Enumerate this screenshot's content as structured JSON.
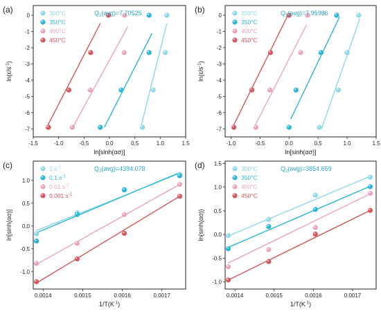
{
  "colors": {
    "s300": "#8ed8e8",
    "s350": "#2cb6d6",
    "s400": "#eaa4c2",
    "s450": "#d4575e"
  },
  "chart_data": [
    {
      "type": "scatter",
      "panel_label": "(a)",
      "annotation": "Q",
      "annotation_sub": "1",
      "annotation_rest": "(avg)=7.70525",
      "xlabel": "ln[sinh(ασ)]",
      "ylabel_html": "ln(ε̇/s⁻¹)",
      "ylabel_parts": [
        "ln(",
        "ε̇",
        "/s",
        "-1",
        ")"
      ],
      "xlim": [
        -1.5,
        1.5
      ],
      "ylim": [
        -7.5,
        0.6
      ],
      "xticks": [
        -1.5,
        -1.0,
        -0.5,
        0.0,
        0.5,
        1.0,
        1.5
      ],
      "xtick_labels": [
        "-1.5",
        "-1.0",
        "-0.5",
        "0.0",
        "0.5",
        "1.0",
        "1.5"
      ],
      "yticks": [
        -7,
        -6,
        -5,
        -4,
        -3,
        -2,
        -1,
        0
      ],
      "ytick_labels": [
        "-7",
        "-6",
        "-5",
        "-4",
        "-3",
        "-2",
        "-1",
        "0"
      ],
      "legend": [
        "300°C",
        "350°C",
        "400°C",
        "450°C"
      ],
      "y_values": [
        -6.91,
        -4.61,
        -2.3,
        0.0
      ],
      "series": [
        {
          "name": "300°C",
          "color_key": "s300",
          "x": [
            0.65,
            0.86,
            1.1,
            1.13
          ],
          "fit": [
            [
              0.61,
              -7.0
            ],
            [
              1.13,
              -0.5
            ]
          ]
        },
        {
          "name": "350°C",
          "color_key": "s350",
          "x": [
            -0.18,
            0.23,
            0.78,
            0.78
          ],
          "fit": [
            [
              -0.1,
              -6.9
            ],
            [
              0.84,
              -1.1
            ]
          ]
        },
        {
          "name": "400°C",
          "color_key": "s400",
          "x": [
            -0.73,
            -0.38,
            0.29,
            0.3
          ],
          "fit": [
            [
              -0.72,
              -6.9
            ],
            [
              0.36,
              -0.7
            ]
          ]
        },
        {
          "name": "450°C",
          "color_key": "s450",
          "x": [
            -1.2,
            -0.8,
            -0.37,
            -0.02
          ],
          "fit": [
            [
              -1.25,
              -7.0
            ],
            [
              -0.18,
              -0.5
            ]
          ]
        }
      ]
    },
    {
      "type": "scatter",
      "panel_label": "(b)",
      "annotation": "Q",
      "annotation_sub": "1",
      "annotation_rest": "(avg)=7.95986",
      "xlabel": "ln[sinh(ασ)]",
      "ylabel_parts": [
        "ln(",
        "ε̇",
        "/s",
        "-1",
        ")"
      ],
      "xlim": [
        -1.1,
        1.5
      ],
      "ylim": [
        -7.5,
        0.6
      ],
      "xticks": [
        -1.0,
        -0.5,
        0.0,
        0.5,
        1.0,
        1.5
      ],
      "xtick_labels": [
        "-1.0",
        "-0.5",
        "0.0",
        "0.5",
        "1.0",
        "1.5"
      ],
      "yticks": [
        -7,
        -6,
        -5,
        -4,
        -3,
        -2,
        -1,
        0
      ],
      "ytick_labels": [
        "-7",
        "-6",
        "-5",
        "-4",
        "-3",
        "-2",
        "-1",
        "0"
      ],
      "legend": [
        "300°C",
        "350°C",
        "400°C",
        "450°C"
      ],
      "y_values": [
        -6.91,
        -4.61,
        -2.3,
        0.0
      ],
      "series": [
        {
          "name": "300°C",
          "color_key": "s300",
          "x": [
            0.52,
            0.85,
            1.0,
            1.2
          ],
          "fit": [
            [
              0.56,
              -7.0
            ],
            [
              1.22,
              -0.2
            ]
          ]
        },
        {
          "name": "350°C",
          "color_key": "s350",
          "x": [
            0.0,
            0.12,
            0.55,
            0.82
          ],
          "fit": [
            [
              0.03,
              -6.4
            ],
            [
              0.87,
              -0.1
            ]
          ]
        },
        {
          "name": "400°C",
          "color_key": "s400",
          "x": [
            -0.57,
            -0.33,
            0.2,
            0.32
          ],
          "fit": [
            [
              -0.6,
              -6.9
            ],
            [
              0.3,
              -0.6
            ]
          ]
        },
        {
          "name": "450°C",
          "color_key": "s450",
          "x": [
            -0.95,
            -0.64,
            -0.32,
            0.0
          ],
          "fit": [
            [
              -0.97,
              -6.9
            ],
            [
              -0.02,
              0.0
            ]
          ]
        }
      ]
    },
    {
      "type": "scatter",
      "panel_label": "(c)",
      "annotation": "Q",
      "annotation_sub": "2",
      "annotation_rest": "(avg)=4394.078",
      "xlabel_parts": [
        "1/T(K",
        "-1",
        ")"
      ],
      "ylabel": "ln[sinh(ασ)]",
      "xlim": [
        0.001375,
        0.00176
      ],
      "ylim": [
        -1.38,
        1.42
      ],
      "xticks": [
        0.0014,
        0.0015,
        0.0016,
        0.0017
      ],
      "xtick_labels": [
        "0.0014",
        "0.0015",
        "0.0016",
        "0.0017"
      ],
      "yticks": [
        -1.0,
        -0.5,
        0.0,
        0.5,
        1.0
      ],
      "ytick_labels": [
        "-1.0",
        "-0.5",
        "0.0",
        "0.5",
        "1.0"
      ],
      "legend": [
        "1 s⁻¹",
        "0.1 s⁻¹",
        "0.01 s⁻¹",
        "0.001 s⁻¹"
      ],
      "legend_parts": [
        [
          "1 s",
          "-1"
        ],
        [
          "0.1 s",
          "-1"
        ],
        [
          "0.01 s",
          "-1"
        ],
        [
          "0.001 s",
          "-1"
        ]
      ],
      "x_values": [
        0.001383,
        0.001486,
        0.001605,
        0.001745
      ],
      "series": [
        {
          "name": "1 s-1",
          "color_key": "s300",
          "y": [
            -0.17,
            0.29,
            0.8,
            1.13
          ],
          "fit": [
            [
              0.001383,
              -0.1
            ],
            [
              0.001745,
              1.15
            ]
          ]
        },
        {
          "name": "0.1 s-1",
          "color_key": "s350",
          "y": [
            -0.33,
            0.25,
            0.79,
            1.1
          ],
          "fit": [
            [
              0.001383,
              -0.15
            ],
            [
              0.001745,
              1.17
            ]
          ]
        },
        {
          "name": "0.01 s-1",
          "color_key": "s400",
          "y": [
            -0.82,
            -0.38,
            0.25,
            0.91
          ],
          "fit": [
            [
              0.001383,
              -0.84
            ],
            [
              0.001745,
              0.91
            ]
          ]
        },
        {
          "name": "0.001 s-1",
          "color_key": "s450",
          "y": [
            -1.22,
            -0.72,
            -0.16,
            0.65
          ],
          "fit": [
            [
              0.001383,
              -1.25
            ],
            [
              0.001745,
              0.65
            ]
          ]
        }
      ]
    },
    {
      "type": "scatter",
      "panel_label": "(d)",
      "annotation": "Q",
      "annotation_sub": "2",
      "annotation_rest": "(avg)=3854.659",
      "xlabel_parts": [
        "1/T(K",
        "-1",
        ")"
      ],
      "ylabel": "ln(sinh(ασ))",
      "xlim": [
        0.001375,
        0.00176
      ],
      "ylim": [
        -1.15,
        1.55
      ],
      "xticks": [
        0.0014,
        0.0015,
        0.0016,
        0.0017
      ],
      "xtick_labels": [
        "0.0014",
        "0.0015",
        "0.0016",
        "0.0017"
      ],
      "yticks": [
        -1.0,
        -0.5,
        0.0,
        0.5,
        1.0,
        1.5
      ],
      "ytick_labels": [
        "-1.0",
        "-0.5",
        "0.0",
        "0.5",
        "1.0",
        "1.5"
      ],
      "legend": [
        "300°C",
        "350°C",
        "400°C",
        "450°C"
      ],
      "x_values": [
        0.001383,
        0.001486,
        0.001605,
        0.001745
      ],
      "series": [
        {
          "name": "300°C",
          "color_key": "s300",
          "y": [
            -0.02,
            0.32,
            0.83,
            1.21
          ],
          "fit": [
            [
              0.001383,
              -0.03
            ],
            [
              0.001745,
              1.23
            ]
          ]
        },
        {
          "name": "350°C",
          "color_key": "s350",
          "y": [
            -0.3,
            0.17,
            0.53,
            1.01
          ],
          "fit": [
            [
              0.001383,
              -0.27
            ],
            [
              0.001745,
              1.02
            ]
          ]
        },
        {
          "name": "400°C",
          "color_key": "s400",
          "y": [
            -0.68,
            -0.32,
            0.15,
            0.87
          ],
          "fit": [
            [
              0.001383,
              -0.6
            ],
            [
              0.001745,
              0.86
            ]
          ]
        },
        {
          "name": "450°C",
          "color_key": "s450",
          "y": [
            -0.96,
            -0.57,
            0.01,
            0.51
          ],
          "fit": [
            [
              0.001383,
              -0.96
            ],
            [
              0.001745,
              0.51
            ]
          ]
        }
      ]
    }
  ]
}
